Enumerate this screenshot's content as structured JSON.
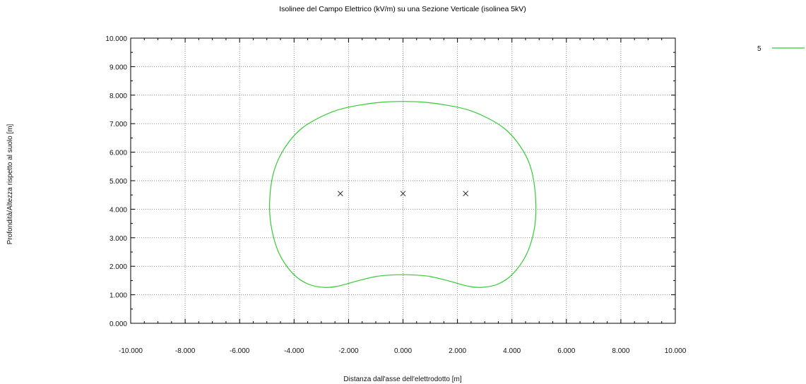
{
  "chart_data": {
    "type": "line",
    "title": "Isolinee del Campo Elettrico (kV/m) su una Sezione Verticale (isolinea 5kV)",
    "xlabel": "Distanza dall'asse dell'elettrodotto [m]",
    "ylabel": "Profondità/Altezza rispetto al suolo [m]",
    "xlim": [
      -10,
      10
    ],
    "ylim": [
      0,
      10
    ],
    "x_ticks": [
      -10,
      -8,
      -6,
      -4,
      -2,
      0,
      2,
      4,
      6,
      8,
      10
    ],
    "x_tick_labels": [
      "-10.000",
      "-8.000",
      "-6.000",
      "-4.000",
      "-2.000",
      "0.000",
      "2.000",
      "4.000",
      "6.000",
      "8.000",
      "10.000"
    ],
    "y_ticks": [
      0,
      1,
      2,
      3,
      4,
      5,
      6,
      7,
      8,
      9,
      10
    ],
    "y_tick_labels": [
      "0.000",
      "1.000",
      "2.000",
      "3.000",
      "4.000",
      "5.000",
      "6.000",
      "7.000",
      "8.000",
      "9.000",
      "10.000"
    ],
    "grid": true,
    "legend_position": "outside-top-right",
    "series": [
      {
        "name": "5",
        "color": "#33cc33",
        "closed": true,
        "points": [
          [
            0.0,
            7.78
          ],
          [
            0.8,
            7.75
          ],
          [
            1.6,
            7.65
          ],
          [
            2.4,
            7.48
          ],
          [
            3.1,
            7.2
          ],
          [
            3.7,
            6.85
          ],
          [
            4.2,
            6.35
          ],
          [
            4.6,
            5.7
          ],
          [
            4.8,
            5.0
          ],
          [
            4.88,
            4.1
          ],
          [
            4.82,
            3.3
          ],
          [
            4.55,
            2.45
          ],
          [
            4.05,
            1.75
          ],
          [
            3.5,
            1.38
          ],
          [
            2.9,
            1.26
          ],
          [
            2.4,
            1.3
          ],
          [
            1.7,
            1.48
          ],
          [
            1.0,
            1.64
          ],
          [
            0.3,
            1.7
          ],
          [
            -0.3,
            1.7
          ],
          [
            -1.0,
            1.64
          ],
          [
            -1.7,
            1.48
          ],
          [
            -2.4,
            1.3
          ],
          [
            -2.9,
            1.26
          ],
          [
            -3.5,
            1.38
          ],
          [
            -4.05,
            1.75
          ],
          [
            -4.55,
            2.45
          ],
          [
            -4.82,
            3.3
          ],
          [
            -4.9,
            4.1
          ],
          [
            -4.82,
            5.0
          ],
          [
            -4.6,
            5.7
          ],
          [
            -4.2,
            6.35
          ],
          [
            -3.7,
            6.85
          ],
          [
            -3.1,
            7.2
          ],
          [
            -2.4,
            7.48
          ],
          [
            -1.6,
            7.65
          ],
          [
            -0.8,
            7.75
          ]
        ]
      }
    ],
    "conductors": [
      {
        "x": -2.3,
        "y": 4.55
      },
      {
        "x": 0.0,
        "y": 4.55
      },
      {
        "x": 2.3,
        "y": 4.55
      }
    ]
  }
}
